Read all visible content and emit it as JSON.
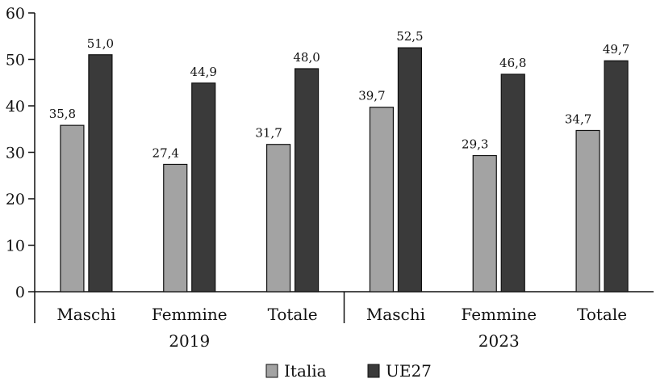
{
  "chart_data": {
    "type": "bar",
    "title": "",
    "xlabel": "",
    "ylabel": "",
    "ylim": [
      0,
      60
    ],
    "yticks": [
      0,
      10,
      20,
      30,
      40,
      50,
      60
    ],
    "grid": false,
    "legend_position": "bottom",
    "groups": [
      {
        "label": "2019",
        "categories": [
          "Maschi",
          "Femmine",
          "Totale"
        ]
      },
      {
        "label": "2023",
        "categories": [
          "Maschi",
          "Femmine",
          "Totale"
        ]
      }
    ],
    "series": [
      {
        "name": "Italia",
        "color": "#a3a3a3",
        "values": [
          35.8,
          27.4,
          31.7,
          39.7,
          29.3,
          34.7
        ],
        "labels": [
          "35,8",
          "27,4",
          "31,7",
          "39,7",
          "29,3",
          "34,7"
        ]
      },
      {
        "name": "UE27",
        "color": "#3a3a3a",
        "values": [
          51.0,
          44.9,
          48.0,
          52.5,
          46.8,
          49.7
        ],
        "labels": [
          "51,0",
          "44,9",
          "48,0",
          "52,5",
          "46,8",
          "49,7"
        ]
      }
    ]
  }
}
